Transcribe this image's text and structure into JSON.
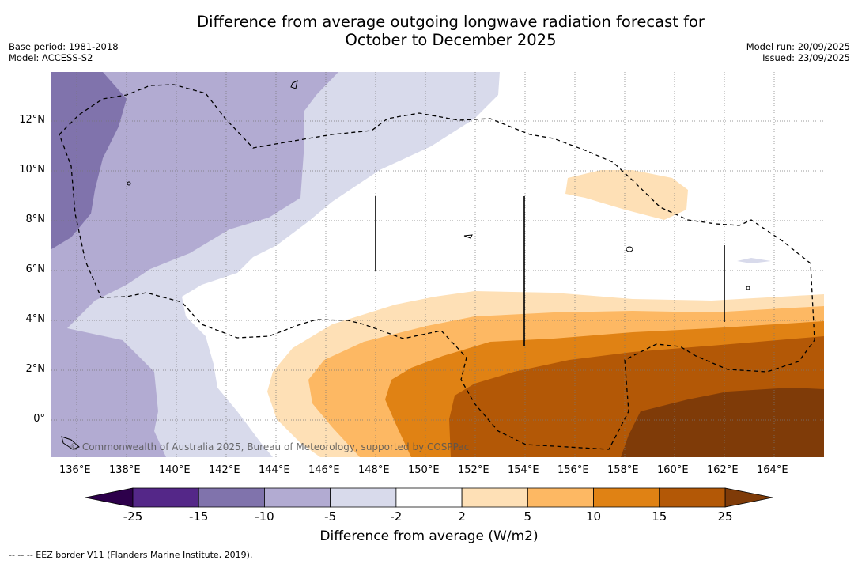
{
  "title_line1": "Difference from average outgoing longwave radiation forecast for",
  "title_line2": "October to December 2025",
  "base_period": "Base period: 1981-2018",
  "model": "Model: ACCESS-S2",
  "model_run": "Model run: 20/09/2025",
  "issued": "Issued: 23/09/2025",
  "copyright": "© Commonwealth of Australia 2025, Bureau of Meteorology, supported by COSPPac",
  "lon_ticks": [
    {
      "v": 136,
      "label": "136°E"
    },
    {
      "v": 138,
      "label": "138°E"
    },
    {
      "v": 140,
      "label": "140°E"
    },
    {
      "v": 142,
      "label": "142°E"
    },
    {
      "v": 144,
      "label": "144°E"
    },
    {
      "v": 146,
      "label": "146°E"
    },
    {
      "v": 148,
      "label": "148°E"
    },
    {
      "v": 150,
      "label": "150°E"
    },
    {
      "v": 152,
      "label": "152°E"
    },
    {
      "v": 154,
      "label": "154°E"
    },
    {
      "v": 156,
      "label": "156°E"
    },
    {
      "v": 158,
      "label": "158°E"
    },
    {
      "v": 160,
      "label": "160°E"
    },
    {
      "v": 162,
      "label": "162°E"
    },
    {
      "v": 164,
      "label": "164°E"
    }
  ],
  "lat_ticks": [
    {
      "v": 0,
      "label": "0°"
    },
    {
      "v": 2,
      "label": "2°N"
    },
    {
      "v": 4,
      "label": "4°N"
    },
    {
      "v": 6,
      "label": "6°N"
    },
    {
      "v": 8,
      "label": "8°N"
    },
    {
      "v": 10,
      "label": "10°N"
    },
    {
      "v": 12,
      "label": "12°N"
    }
  ],
  "colorbar": {
    "label": "Difference from average (W/m2)",
    "ticks": [
      "-25",
      "-15",
      "-10",
      "-5",
      "-2",
      "2",
      "5",
      "10",
      "15",
      "25"
    ],
    "colors": [
      "#542788",
      "#8073ac",
      "#b2abd2",
      "#d8daeb",
      "#ffffff",
      "#fee0b6",
      "#fdb863",
      "#e08214",
      "#b35806"
    ],
    "under_color": "#2d004b",
    "over_color": "#7f3b08"
  },
  "legend_note": "--  --  -- EEZ border V11 (Flanders Marine Institute, 2019)."
}
